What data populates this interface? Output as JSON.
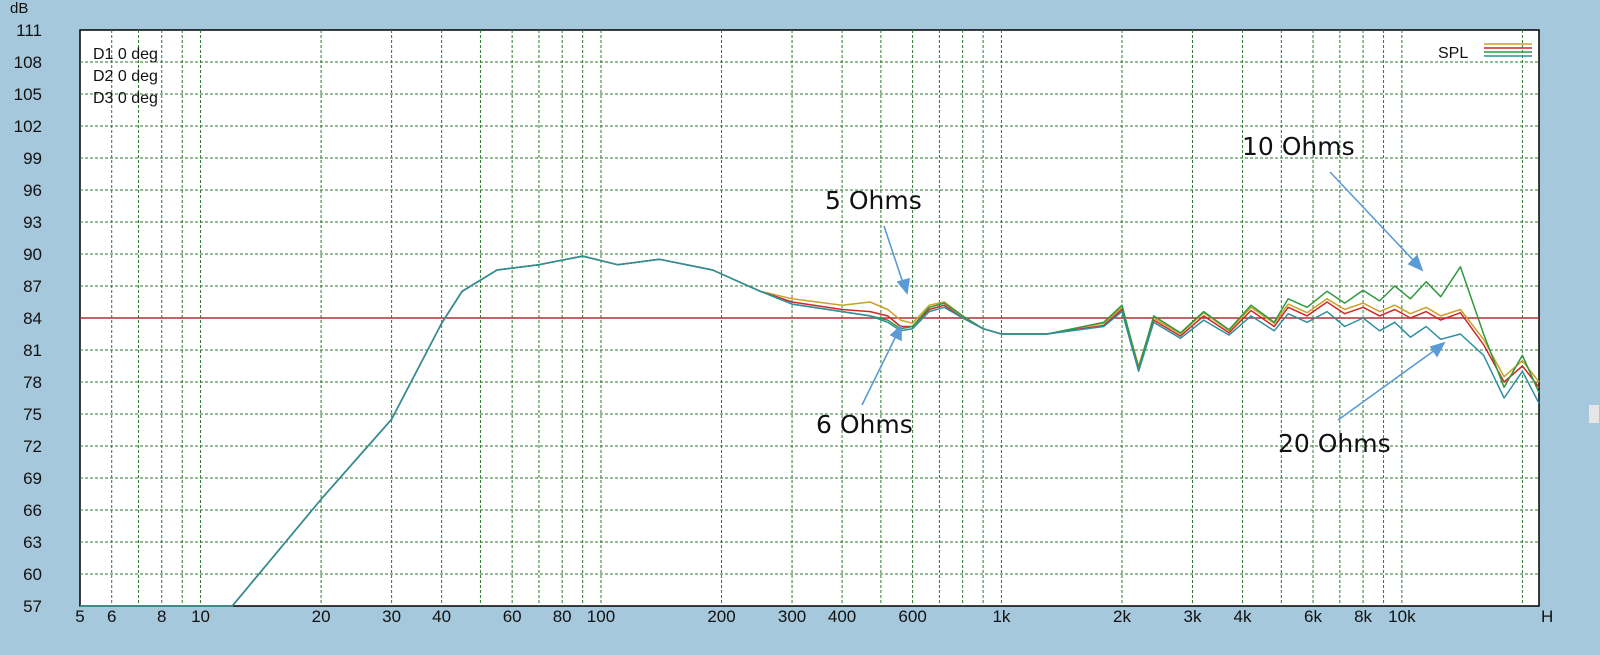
{
  "chart_data": {
    "type": "line",
    "ylabel": "dB",
    "x_scale": "log",
    "xlim": [
      5,
      22000
    ],
    "ylim": [
      57,
      111
    ],
    "yticks": [
      "57",
      "60",
      "63",
      "66",
      "69",
      "72",
      "75",
      "78",
      "81",
      "84",
      "87",
      "90",
      "93",
      "96",
      "99",
      "102",
      "105",
      "108",
      "111"
    ],
    "xticks": [
      {
        "label": "5",
        "value": 5
      },
      {
        "label": "6",
        "value": 6
      },
      {
        "label": "8",
        "value": 8
      },
      {
        "label": "10",
        "value": 10
      },
      {
        "label": "20",
        "value": 20
      },
      {
        "label": "30",
        "value": 30
      },
      {
        "label": "40",
        "value": 40
      },
      {
        "label": "60",
        "value": 60
      },
      {
        "label": "80",
        "value": 80
      },
      {
        "label": "100",
        "value": 100
      },
      {
        "label": "200",
        "value": 200
      },
      {
        "label": "300",
        "value": 300
      },
      {
        "label": "400",
        "value": 400
      },
      {
        "label": "600",
        "value": 600
      },
      {
        "label": "1k",
        "value": 1000
      },
      {
        "label": "2k",
        "value": 2000
      },
      {
        "label": "3k",
        "value": 3000
      },
      {
        "label": "4k",
        "value": 4000
      },
      {
        "label": "6k",
        "value": 6000
      },
      {
        "label": "8k",
        "value": 8000
      },
      {
        "label": "10k",
        "value": 10000
      },
      {
        "label": "H",
        "value": 22000
      }
    ],
    "grid": true,
    "reference_line": {
      "y": 84,
      "color": "#b03030"
    },
    "legend": {
      "label": "SPL",
      "position": "top-right"
    },
    "curve_labels": [
      "D1 0 deg",
      "D2 0 deg",
      "D3 0 deg"
    ],
    "annotations": [
      "5 Ohms",
      "6 Ohms",
      "10 Ohms",
      "20 Ohms"
    ],
    "series": [
      {
        "color": "#c9a227",
        "x": [
          5,
          12,
          20,
          30,
          40,
          45,
          55,
          70,
          90,
          110,
          140,
          190,
          250,
          300,
          400,
          470,
          520,
          560,
          600,
          660,
          720,
          800,
          900,
          1000,
          1300,
          1800,
          2000,
          2200,
          2400,
          2800,
          3200,
          3700,
          4200,
          4800,
          5200,
          5800,
          6500,
          7200,
          8000,
          8800,
          9600,
          10500,
          11500,
          12500,
          14000,
          16000,
          18000,
          20000,
          22000
        ],
        "y": [
          57,
          57,
          67,
          74.5,
          83.5,
          86.5,
          88.5,
          89,
          89.8,
          89,
          89.5,
          88.5,
          86.5,
          85.8,
          85.2,
          85.5,
          84.8,
          83.8,
          83.5,
          85.2,
          85.5,
          84.2,
          83,
          82.5,
          82.5,
          83.5,
          85,
          79.5,
          84,
          82.5,
          84.5,
          82.8,
          85,
          83.5,
          85.3,
          84.5,
          85.8,
          84.8,
          85.4,
          84.6,
          85.2,
          84.4,
          85,
          84.2,
          84.8,
          82,
          78.5,
          80,
          78
        ]
      },
      {
        "color": "#cc2a2a",
        "x": [
          5,
          12,
          20,
          30,
          40,
          45,
          55,
          70,
          90,
          110,
          140,
          190,
          250,
          300,
          400,
          470,
          520,
          560,
          600,
          660,
          720,
          800,
          900,
          1000,
          1300,
          1800,
          2000,
          2200,
          2400,
          2800,
          3200,
          3700,
          4200,
          4800,
          5200,
          5800,
          6500,
          7200,
          8000,
          8800,
          9600,
          10500,
          11500,
          12500,
          14000,
          16000,
          18000,
          20000,
          22000
        ],
        "y": [
          57,
          57,
          67,
          74.5,
          83.5,
          86.5,
          88.5,
          89,
          89.8,
          89,
          89.5,
          88.5,
          86.5,
          85.5,
          84.8,
          84.6,
          84.2,
          83.2,
          83.2,
          84.8,
          85.2,
          84,
          83,
          82.5,
          82.5,
          83.3,
          84.8,
          79.3,
          83.8,
          82.3,
          84.2,
          82.6,
          84.7,
          83.2,
          85,
          84.2,
          85.5,
          84.4,
          85,
          84.2,
          84.8,
          84,
          84.6,
          83.8,
          84.5,
          81.5,
          78,
          79.5,
          77.5
        ]
      },
      {
        "color": "#2f9a3c",
        "x": [
          5,
          12,
          20,
          30,
          40,
          45,
          55,
          70,
          90,
          110,
          140,
          190,
          250,
          300,
          400,
          470,
          520,
          560,
          600,
          660,
          720,
          800,
          900,
          1000,
          1300,
          1800,
          2000,
          2200,
          2400,
          2800,
          3200,
          3700,
          4200,
          4800,
          5200,
          5800,
          6500,
          7200,
          8000,
          8800,
          9600,
          10500,
          11500,
          12500,
          14000,
          16000,
          18000,
          20000,
          22000
        ],
        "y": [
          57,
          57,
          67,
          74.5,
          83.5,
          86.5,
          88.5,
          89,
          89.8,
          89,
          89.5,
          88.5,
          86.5,
          85.3,
          84.6,
          84.2,
          83.8,
          83,
          83.2,
          85,
          85.4,
          84.2,
          83,
          82.5,
          82.5,
          83.6,
          85.2,
          79.2,
          84.2,
          82.6,
          84.6,
          82.9,
          85.2,
          83.6,
          85.8,
          85,
          86.5,
          85.4,
          86.6,
          85.6,
          87,
          85.8,
          87.4,
          86,
          88.8,
          82.5,
          77.5,
          80.5,
          77
        ]
      },
      {
        "color": "#2f8fa0",
        "x": [
          5,
          12,
          20,
          30,
          40,
          45,
          55,
          70,
          90,
          110,
          140,
          190,
          250,
          300,
          400,
          470,
          520,
          560,
          600,
          660,
          720,
          800,
          900,
          1000,
          1300,
          1800,
          2000,
          2200,
          2400,
          2800,
          3200,
          3700,
          4200,
          4800,
          5200,
          5800,
          6500,
          7200,
          8000,
          8800,
          9600,
          10500,
          11500,
          12500,
          14000,
          16000,
          18000,
          20000,
          22000
        ],
        "y": [
          57,
          57,
          67,
          74.5,
          83.5,
          86.5,
          88.5,
          89,
          89.8,
          89,
          89.5,
          88.5,
          86.5,
          85.3,
          84.6,
          84.2,
          83.6,
          82.8,
          83,
          84.6,
          85,
          84,
          83,
          82.5,
          82.5,
          83.2,
          84.6,
          79,
          83.6,
          82.1,
          83.8,
          82.4,
          84.2,
          82.8,
          84.4,
          83.6,
          84.6,
          83.2,
          84,
          82.8,
          83.6,
          82.2,
          83.2,
          82,
          82.5,
          80.5,
          76.5,
          79,
          76
        ]
      }
    ]
  }
}
